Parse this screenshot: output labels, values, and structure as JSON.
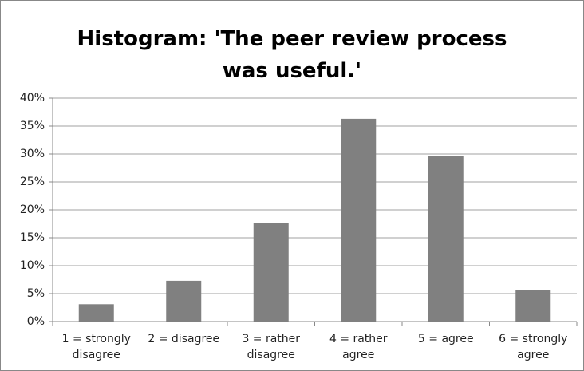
{
  "chart_data": {
    "type": "bar",
    "title": "Histogram: 'The peer review process was useful.'",
    "categories": [
      "1 = strongly disagree",
      "2 = disagree",
      "3 = rather disagree",
      "4 = rather agree",
      "5 = agree",
      "6 = strongly agree"
    ],
    "values": [
      3.1,
      7.3,
      17.6,
      36.3,
      29.7,
      5.7
    ],
    "color": "#808080",
    "ylim": [
      0,
      40
    ],
    "yticks": [
      {
        "value": 0,
        "label": "0%"
      },
      {
        "value": 5,
        "label": "5%"
      },
      {
        "value": 10,
        "label": "10%"
      },
      {
        "value": 15,
        "label": "15%"
      },
      {
        "value": 20,
        "label": "20%"
      },
      {
        "value": 25,
        "label": "25%"
      },
      {
        "value": 30,
        "label": "30%"
      },
      {
        "value": 35,
        "label": "35%"
      },
      {
        "value": 40,
        "label": "40%"
      }
    ],
    "grid": true
  }
}
